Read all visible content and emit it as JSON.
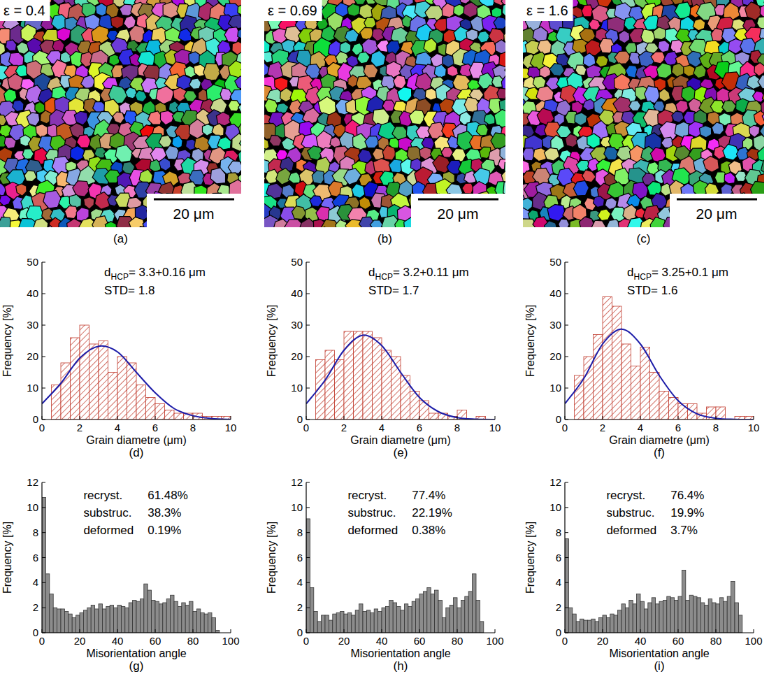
{
  "maps": [
    {
      "label": "ε = 0.4",
      "scale_bar": "20 μm",
      "panel": "(a)"
    },
    {
      "label": "ε = 0.69",
      "scale_bar": "20 μm",
      "panel": "(b)"
    },
    {
      "label": "ε = 1.6",
      "scale_bar": "20 μm",
      "panel": "(c)"
    }
  ],
  "chart_data": [
    {
      "type": "histogram",
      "panel": "(d)",
      "x_label": "Grain diametre (μm)",
      "y_label": "Frequency [%]",
      "color": "#c0392b",
      "bins": [
        0.5,
        1,
        1.5,
        2,
        2.5,
        3,
        3.5,
        4,
        4.5,
        5,
        5.5,
        6,
        6.5,
        7,
        7.5,
        8,
        8.5,
        9,
        9.5,
        10
      ],
      "values": [
        11,
        18,
        26,
        30,
        24,
        25,
        15,
        20,
        18,
        11,
        7,
        5,
        3,
        2,
        2,
        2,
        1,
        1,
        1
      ],
      "xlim": [
        0,
        10
      ],
      "xticks": [
        0,
        2,
        4,
        6,
        8,
        10
      ],
      "ylim": [
        0,
        50
      ],
      "yticks": [
        0,
        10,
        20,
        30,
        40,
        50
      ],
      "annotations": [
        {
          "symbol": "d",
          "subscript": "HCP",
          "text": "= 3.3+0.16 μm"
        },
        {
          "text": "STD= 1.8"
        }
      ],
      "series": [
        {
          "type": "line",
          "color": "#1c1ca8",
          "x": [
            0,
            1,
            2,
            3,
            4,
            5,
            6,
            7,
            8,
            9,
            10
          ],
          "values": [
            5,
            11.5,
            19.5,
            23.3,
            21.5,
            15,
            8.5,
            3.5,
            1.2,
            0.3,
            0.05
          ]
        }
      ]
    },
    {
      "type": "histogram",
      "panel": "(e)",
      "x_label": "Grain diametre (μm)",
      "y_label": "Frequency [%]",
      "color": "#c0392b",
      "bins": [
        0.5,
        1,
        1.5,
        2,
        2.5,
        3,
        3.5,
        4,
        4.5,
        5,
        5.5,
        6,
        6.5,
        7,
        7.5,
        8,
        8.5,
        9,
        9.5,
        10
      ],
      "values": [
        19,
        22,
        19,
        28,
        28,
        28,
        26,
        22,
        20,
        14,
        9,
        6,
        2,
        2,
        1,
        3,
        0,
        1,
        0
      ],
      "xlim": [
        0,
        10
      ],
      "xticks": [
        0,
        2,
        4,
        6,
        8,
        10
      ],
      "ylim": [
        0,
        50
      ],
      "yticks": [
        0,
        10,
        20,
        30,
        40,
        50
      ],
      "annotations": [
        {
          "symbol": "d",
          "subscript": "HCP",
          "text": "= 3.2+0.11 μm"
        },
        {
          "text": "STD= 1.7"
        }
      ],
      "series": [
        {
          "type": "line",
          "color": "#1c1ca8",
          "x": [
            0,
            1,
            2,
            3,
            4,
            5,
            6,
            7,
            8,
            9,
            10
          ],
          "values": [
            5,
            12.5,
            22,
            26.8,
            23.5,
            15,
            7,
            2.5,
            0.6,
            0.1,
            0
          ]
        }
      ]
    },
    {
      "type": "histogram",
      "panel": "(f)",
      "x_label": "Grain diametre (μm)",
      "y_label": "Frequency [%]",
      "color": "#c0392b",
      "bins": [
        0.5,
        1,
        1.5,
        2,
        2.5,
        3,
        3.5,
        4,
        4.5,
        5,
        5.5,
        6,
        6.5,
        7,
        7.5,
        8,
        8.5,
        9,
        9.5,
        10
      ],
      "values": [
        14,
        20,
        27,
        39,
        36,
        24,
        17,
        23,
        15,
        9,
        7,
        5,
        5,
        2,
        4,
        4,
        0,
        1,
        1
      ],
      "xlim": [
        0,
        10
      ],
      "xticks": [
        0,
        2,
        4,
        6,
        8,
        10
      ],
      "ylim": [
        0,
        50
      ],
      "yticks": [
        0,
        10,
        20,
        30,
        40,
        50
      ],
      "annotations": [
        {
          "symbol": "d",
          "subscript": "HCP",
          "text": "= 3.25+0.1 μm"
        },
        {
          "text": "STD= 1.6"
        }
      ],
      "series": [
        {
          "type": "line",
          "color": "#1c1ca8",
          "x": [
            0,
            1,
            2,
            3,
            4,
            5,
            6,
            7,
            8,
            9,
            10
          ],
          "values": [
            5,
            13,
            24,
            28.7,
            24,
            14,
            6,
            1.8,
            0.4,
            0.05,
            0
          ]
        }
      ]
    },
    {
      "type": "histogram",
      "panel": "(g)",
      "x_label": "Misorientation angle",
      "y_label": "Frequency [%]",
      "color": "#8c8c8c",
      "bins": [
        0,
        2,
        4,
        6,
        8,
        10,
        12,
        14,
        16,
        18,
        20,
        22,
        24,
        26,
        28,
        30,
        32,
        34,
        36,
        38,
        40,
        42,
        44,
        46,
        48,
        50,
        52,
        54,
        56,
        58,
        60,
        62,
        64,
        66,
        68,
        70,
        72,
        74,
        76,
        78,
        80,
        82,
        84,
        86,
        88,
        90,
        92,
        94
      ],
      "values": [
        10.8,
        4.7,
        3.1,
        2.0,
        1.9,
        1.9,
        1.7,
        1.5,
        1.2,
        1.4,
        1.6,
        1.8,
        2.0,
        2.2,
        1.9,
        2.3,
        1.9,
        2.1,
        2.2,
        2.0,
        2.2,
        2.1,
        2.0,
        2.4,
        2.6,
        2.5,
        2.7,
        3.9,
        3.4,
        2.6,
        2.5,
        2.3,
        2.4,
        2.7,
        3.0,
        2.5,
        2.1,
        2.4,
        2.2,
        2.5,
        1.7,
        1.9,
        1.6,
        1.5,
        1.6,
        1.2,
        0.2
      ],
      "xlim": [
        0,
        100
      ],
      "xticks": [
        0,
        20,
        40,
        60,
        80,
        100
      ],
      "ylim": [
        0,
        12
      ],
      "yticks": [
        0,
        2,
        4,
        6,
        8,
        10,
        12
      ],
      "annotations": {
        "rows": [
          [
            "recryst.",
            "61.48%"
          ],
          [
            "substruc.",
            "38.3%"
          ],
          [
            "deformed",
            "0.19%"
          ]
        ]
      }
    },
    {
      "type": "histogram",
      "panel": "(h)",
      "x_label": "Misorientation angle",
      "y_label": "Frequency [%]",
      "color": "#8c8c8c",
      "bins": [
        0,
        2,
        4,
        6,
        8,
        10,
        12,
        14,
        16,
        18,
        20,
        22,
        24,
        26,
        28,
        30,
        32,
        34,
        36,
        38,
        40,
        42,
        44,
        46,
        48,
        50,
        52,
        54,
        56,
        58,
        60,
        62,
        64,
        66,
        68,
        70,
        72,
        74,
        76,
        78,
        80,
        82,
        84,
        86,
        88,
        90,
        92,
        94
      ],
      "values": [
        9.1,
        3.6,
        1.7,
        0.9,
        1.4,
        1.4,
        1.0,
        1.5,
        1.6,
        1.7,
        1.5,
        1.6,
        1.4,
        1.8,
        2.3,
        1.7,
        1.8,
        1.6,
        1.9,
        1.7,
        2.0,
        2.1,
        2.6,
        2.4,
        2.1,
        1.8,
        2.3,
        2.1,
        2.5,
        2.7,
        3.1,
        3.3,
        3.6,
        3.1,
        3.4,
        2.6,
        1.2,
        2.0,
        2.2,
        2.8,
        2.0,
        2.6,
        2.9,
        3.3,
        4.7,
        2.6,
        0.9
      ],
      "xlim": [
        0,
        100
      ],
      "xticks": [
        0,
        20,
        40,
        60,
        80,
        100
      ],
      "ylim": [
        0,
        12
      ],
      "yticks": [
        0,
        2,
        4,
        6,
        8,
        10,
        12
      ],
      "annotations": {
        "rows": [
          [
            "recryst.",
            "77.4%"
          ],
          [
            "substruc.",
            "22.19%"
          ],
          [
            "deformed",
            "0.38%"
          ]
        ]
      }
    },
    {
      "type": "histogram",
      "panel": "(i)",
      "x_label": "Misorientation angle",
      "y_label": "Frequency [%]",
      "color": "#8c8c8c",
      "bins": [
        0,
        2,
        4,
        6,
        8,
        10,
        12,
        14,
        16,
        18,
        20,
        22,
        24,
        26,
        28,
        30,
        32,
        34,
        36,
        38,
        40,
        42,
        44,
        46,
        48,
        50,
        52,
        54,
        56,
        58,
        60,
        62,
        64,
        66,
        68,
        70,
        72,
        74,
        76,
        78,
        80,
        82,
        84,
        86,
        88,
        90,
        92,
        94
      ],
      "values": [
        7.5,
        2.0,
        1.5,
        0.9,
        1.1,
        1.0,
        1.0,
        1.1,
        0.9,
        1.2,
        1.4,
        1.2,
        1.5,
        1.4,
        1.8,
        2.3,
        2.0,
        2.6,
        2.3,
        3.1,
        2.5,
        1.9,
        2.4,
        2.8,
        2.3,
        2.5,
        2.6,
        2.9,
        2.8,
        2.6,
        2.9,
        5.0,
        2.6,
        3.0,
        2.9,
        2.8,
        2.4,
        2.2,
        2.7,
        2.4,
        2.3,
        2.8,
        2.5,
        2.9,
        4.1,
        2.4,
        1.4
      ],
      "xlim": [
        0,
        100
      ],
      "xticks": [
        0,
        20,
        40,
        60,
        80,
        100
      ],
      "ylim": [
        0,
        12
      ],
      "yticks": [
        0,
        2,
        4,
        6,
        8,
        10,
        12
      ],
      "annotations": {
        "rows": [
          [
            "recryst.",
            "76.4%"
          ],
          [
            "substruc.",
            "19.9%"
          ],
          [
            "deformed",
            "3.7%"
          ]
        ]
      }
    }
  ]
}
